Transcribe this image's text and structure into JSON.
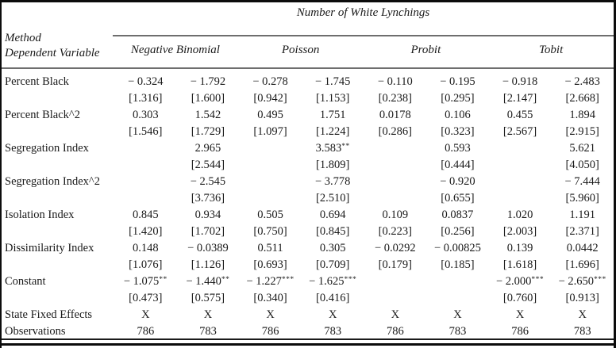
{
  "table": {
    "corner": {
      "line1": "Method",
      "line2": "Dependent Variable"
    },
    "spanner": "Number of White Lynchings",
    "column_groups": [
      {
        "label": "Negative Binomial"
      },
      {
        "label": "Poisson"
      },
      {
        "label": "Probit"
      },
      {
        "label": "Tobit"
      }
    ],
    "rows": [
      {
        "label": "Percent Black",
        "cells": [
          "− 0.324",
          "− 1.792",
          "− 0.278",
          "− 1.745",
          "− 0.110",
          "− 0.195",
          "− 0.918",
          "− 2.483"
        ]
      },
      {
        "label": "",
        "cells": [
          "[1.316]",
          "[1.600]",
          "[0.942]",
          "[1.153]",
          "[0.238]",
          "[0.295]",
          "[2.147]",
          "[2.668]"
        ]
      },
      {
        "label": "Percent Black^2",
        "cells": [
          "0.303",
          "1.542",
          "0.495",
          "1.751",
          "0.0178",
          "0.106",
          "0.455",
          "1.894"
        ]
      },
      {
        "label": "",
        "cells": [
          "[1.546]",
          "[1.729]",
          "[1.097]",
          "[1.224]",
          "[0.286]",
          "[0.323]",
          "[2.567]",
          "[2.915]"
        ]
      },
      {
        "label": "Segregation Index",
        "cells": [
          "",
          "2.965",
          "",
          "3.583**",
          "",
          "0.593",
          "",
          "5.621"
        ]
      },
      {
        "label": "",
        "cells": [
          "",
          "[2.544]",
          "",
          "[1.809]",
          "",
          "[0.444]",
          "",
          "[4.050]"
        ]
      },
      {
        "label": "Segregation Index^2",
        "cells": [
          "",
          "− 2.545",
          "",
          "− 3.778",
          "",
          "− 0.920",
          "",
          "− 7.444"
        ]
      },
      {
        "label": "",
        "cells": [
          "",
          "[3.736]",
          "",
          "[2.510]",
          "",
          "[0.655]",
          "",
          "[5.960]"
        ]
      },
      {
        "label": "Isolation Index",
        "cells": [
          "0.845",
          "0.934",
          "0.505",
          "0.694",
          "0.109",
          "0.0837",
          "1.020",
          "1.191"
        ]
      },
      {
        "label": "",
        "cells": [
          "[1.420]",
          "[1.702]",
          "[0.750]",
          "[0.845]",
          "[0.223]",
          "[0.256]",
          "[2.003]",
          "[2.371]"
        ]
      },
      {
        "label": "Dissimilarity Index",
        "cells": [
          "0.148",
          "− 0.0389",
          "0.511",
          "0.305",
          "− 0.0292",
          "− 0.00825",
          "0.139",
          "0.0442"
        ]
      },
      {
        "label": "",
        "cells": [
          "[1.076]",
          "[1.126]",
          "[0.693]",
          "[0.709]",
          "[0.179]",
          "[0.185]",
          "[1.618]",
          "[1.696]"
        ]
      },
      {
        "label": "Constant",
        "cells": [
          "− 1.075**",
          "− 1.440**",
          "− 1.227***",
          "− 1.625***",
          "",
          "",
          "− 2.000***",
          "− 2.650***"
        ]
      },
      {
        "label": "",
        "cells": [
          "[0.473]",
          "[0.575]",
          "[0.340]",
          "[0.416]",
          "",
          "",
          "[0.760]",
          "[0.913]"
        ]
      },
      {
        "label": "State Fixed Effects",
        "cells": [
          "X",
          "X",
          "X",
          "X",
          "X",
          "X",
          "X",
          "X"
        ]
      },
      {
        "label": "Observations",
        "cells": [
          "786",
          "783",
          "786",
          "783",
          "786",
          "783",
          "786",
          "783"
        ]
      }
    ]
  }
}
